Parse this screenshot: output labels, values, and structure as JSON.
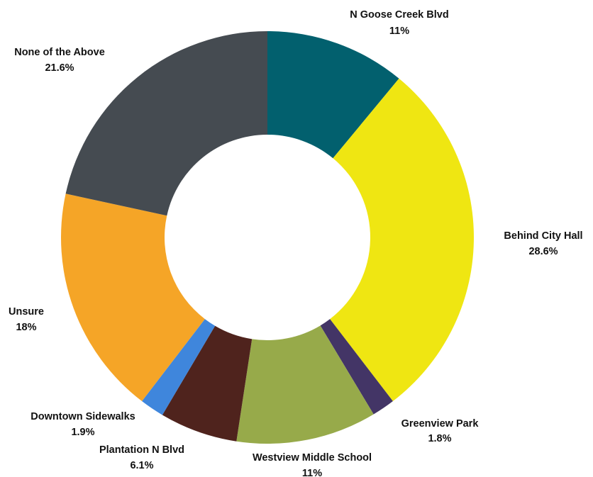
{
  "chart_data": {
    "type": "pie",
    "donut": true,
    "start_angle_deg": 0,
    "direction": "clockwise",
    "slices": [
      {
        "label": "N Goose Creek Blvd",
        "value": 11,
        "value_text": "11%",
        "color": "#02606E"
      },
      {
        "label": "Behind City Hall",
        "value": 28.6,
        "value_text": "28.6%",
        "color": "#EFE612"
      },
      {
        "label": "Greenview Park",
        "value": 1.8,
        "value_text": "1.8%",
        "color": "#433566"
      },
      {
        "label": "Westview Middle School",
        "value": 11,
        "value_text": "11%",
        "color": "#97AA4A"
      },
      {
        "label": "Plantation N Blvd",
        "value": 6.1,
        "value_text": "6.1%",
        "color": "#4F231D"
      },
      {
        "label": "Downtown Sidewalks",
        "value": 1.9,
        "value_text": "1.9%",
        "color": "#3F86DC"
      },
      {
        "label": "Unsure",
        "value": 18,
        "value_text": "18%",
        "color": "#F5A527"
      },
      {
        "label": "None of the Above",
        "value": 21.6,
        "value_text": "21.6%",
        "color": "#454B51"
      }
    ]
  }
}
